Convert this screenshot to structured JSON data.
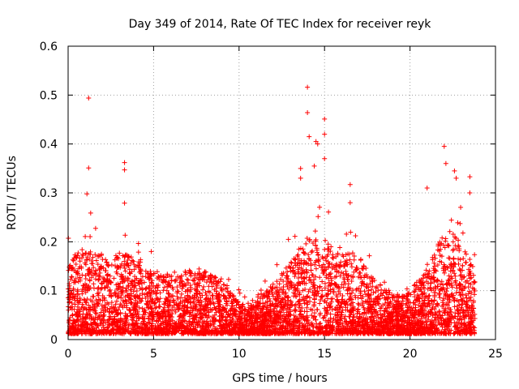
{
  "chart_data": {
    "type": "scatter",
    "title": "Day 349 of 2014, Rate Of TEC Index for receiver reyk",
    "xlabel": "GPS time / hours",
    "ylabel": "ROTI / TECUs",
    "xlim": [
      0,
      25
    ],
    "ylim": [
      0,
      0.6
    ],
    "xticks": [
      0,
      5,
      10,
      15,
      20,
      25
    ],
    "yticks": [
      0,
      0.1,
      0.2,
      0.3,
      0.4,
      0.5,
      0.6
    ],
    "xtick_labels": [
      "0",
      "5",
      "10",
      "15",
      "20",
      "25"
    ],
    "ytick_labels": [
      "0",
      "0.1",
      "0.2",
      "0.3",
      "0.4",
      "0.5",
      "0.6"
    ],
    "grid": true,
    "marker": "+",
    "marker_color": "#ff0000",
    "x_data_range": [
      0,
      23.8
    ],
    "notable_points": [
      {
        "x": 1.2,
        "y": 0.494
      },
      {
        "x": 1.2,
        "y": 0.351
      },
      {
        "x": 1.1,
        "y": 0.298
      },
      {
        "x": 3.3,
        "y": 0.362
      },
      {
        "x": 3.3,
        "y": 0.347
      },
      {
        "x": 3.3,
        "y": 0.279
      },
      {
        "x": 13.6,
        "y": 0.35
      },
      {
        "x": 13.6,
        "y": 0.33
      },
      {
        "x": 14.0,
        "y": 0.516
      },
      {
        "x": 14.0,
        "y": 0.464
      },
      {
        "x": 14.1,
        "y": 0.415
      },
      {
        "x": 14.4,
        "y": 0.355
      },
      {
        "x": 14.5,
        "y": 0.405
      },
      {
        "x": 14.6,
        "y": 0.4
      },
      {
        "x": 15.0,
        "y": 0.451
      },
      {
        "x": 15.0,
        "y": 0.42
      },
      {
        "x": 15.0,
        "y": 0.37
      },
      {
        "x": 16.5,
        "y": 0.317
      },
      {
        "x": 16.5,
        "y": 0.28
      },
      {
        "x": 21.0,
        "y": 0.31
      },
      {
        "x": 22.0,
        "y": 0.395
      },
      {
        "x": 22.1,
        "y": 0.36
      },
      {
        "x": 22.6,
        "y": 0.345
      },
      {
        "x": 22.7,
        "y": 0.33
      },
      {
        "x": 23.5,
        "y": 0.333
      },
      {
        "x": 23.5,
        "y": 0.3
      }
    ],
    "series": [
      {
        "name": "ROTI",
        "description": "dense scatter of ~5000 points, mostly between 0.01 and 0.2 TECU"
      }
    ]
  }
}
